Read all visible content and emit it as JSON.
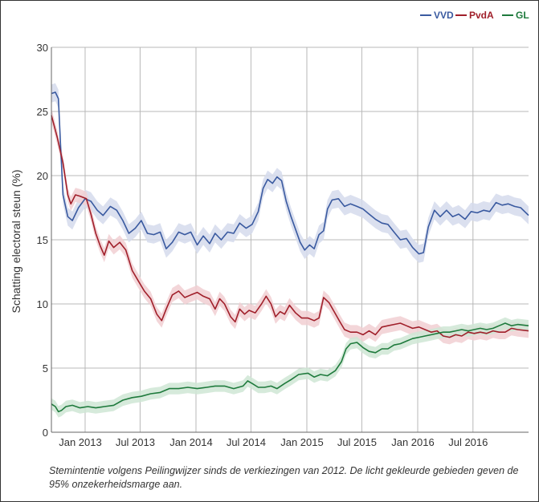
{
  "chart_data": {
    "type": "line",
    "title": "",
    "xlabel": "",
    "ylabel": "Schatting electoral steun (%)",
    "ylim": [
      0,
      30
    ],
    "xlim": [
      "2012-09-12",
      "2016-12-31"
    ],
    "grid": true,
    "legend_position": "top-right",
    "y_ticks": [
      "0",
      "5",
      "10",
      "15",
      "20",
      "25",
      "30"
    ],
    "x_ticks": [
      {
        "date": "2013-01-01",
        "label": "Jan 2013"
      },
      {
        "date": "2013-07-01",
        "label": "Jul 2013"
      },
      {
        "date": "2014-01-01",
        "label": "Jan 2014"
      },
      {
        "date": "2014-07-01",
        "label": "Jul 2014"
      },
      {
        "date": "2015-01-01",
        "label": "Jan 2015"
      },
      {
        "date": "2015-07-01",
        "label": "Jul 2015"
      },
      {
        "date": "2016-01-01",
        "label": "Jan 2016"
      },
      {
        "date": "2016-07-01",
        "label": "Jul 2016"
      }
    ],
    "band_note": "95% onzekerheidsmarge",
    "series": [
      {
        "name": "VVD",
        "color": "#3a5aa0",
        "band_color": "#d5daec",
        "band_halfwidth": 0.7,
        "points": [
          [
            "2012-09-12",
            26.4
          ],
          [
            "2012-09-25",
            26.5
          ],
          [
            "2012-10-05",
            26.0
          ],
          [
            "2012-10-12",
            22.5
          ],
          [
            "2012-10-20",
            18.5
          ],
          [
            "2012-11-05",
            16.8
          ],
          [
            "2012-11-20",
            16.5
          ],
          [
            "2012-12-10",
            17.5
          ],
          [
            "2013-01-01",
            18.2
          ],
          [
            "2013-01-20",
            18.0
          ],
          [
            "2013-02-10",
            17.3
          ],
          [
            "2013-03-01",
            16.9
          ],
          [
            "2013-03-25",
            17.6
          ],
          [
            "2013-04-15",
            17.3
          ],
          [
            "2013-05-05",
            16.5
          ],
          [
            "2013-05-25",
            15.5
          ],
          [
            "2013-06-15",
            15.9
          ],
          [
            "2013-07-05",
            16.5
          ],
          [
            "2013-07-25",
            15.5
          ],
          [
            "2013-08-15",
            15.4
          ],
          [
            "2013-09-05",
            15.6
          ],
          [
            "2013-09-25",
            14.3
          ],
          [
            "2013-10-15",
            14.8
          ],
          [
            "2013-11-05",
            15.6
          ],
          [
            "2013-11-25",
            15.4
          ],
          [
            "2013-12-15",
            15.6
          ],
          [
            "2014-01-05",
            14.6
          ],
          [
            "2014-01-25",
            15.3
          ],
          [
            "2014-02-15",
            14.7
          ],
          [
            "2014-03-05",
            15.5
          ],
          [
            "2014-03-25",
            15.0
          ],
          [
            "2014-04-15",
            15.6
          ],
          [
            "2014-05-05",
            15.5
          ],
          [
            "2014-05-25",
            16.3
          ],
          [
            "2014-06-15",
            15.9
          ],
          [
            "2014-07-05",
            16.2
          ],
          [
            "2014-07-25",
            17.2
          ],
          [
            "2014-08-10",
            19.0
          ],
          [
            "2014-08-25",
            19.7
          ],
          [
            "2014-09-10",
            19.4
          ],
          [
            "2014-09-25",
            19.9
          ],
          [
            "2014-10-10",
            19.6
          ],
          [
            "2014-10-25",
            18.0
          ],
          [
            "2014-11-10",
            16.8
          ],
          [
            "2014-11-25",
            15.8
          ],
          [
            "2014-12-10",
            14.8
          ],
          [
            "2014-12-25",
            14.2
          ],
          [
            "2015-01-10",
            14.6
          ],
          [
            "2015-01-25",
            14.3
          ],
          [
            "2015-02-10",
            15.4
          ],
          [
            "2015-02-25",
            15.7
          ],
          [
            "2015-03-10",
            17.4
          ],
          [
            "2015-03-25",
            18.1
          ],
          [
            "2015-04-15",
            18.2
          ],
          [
            "2015-05-05",
            17.6
          ],
          [
            "2015-05-25",
            17.8
          ],
          [
            "2015-06-15",
            17.6
          ],
          [
            "2015-07-05",
            17.4
          ],
          [
            "2015-07-25",
            17.0
          ],
          [
            "2015-08-15",
            16.6
          ],
          [
            "2015-09-05",
            16.3
          ],
          [
            "2015-09-25",
            16.2
          ],
          [
            "2015-10-15",
            15.6
          ],
          [
            "2015-11-05",
            15.0
          ],
          [
            "2015-11-25",
            15.1
          ],
          [
            "2015-12-15",
            14.4
          ],
          [
            "2016-01-05",
            13.9
          ],
          [
            "2016-01-20",
            14.0
          ],
          [
            "2016-02-05",
            16.0
          ],
          [
            "2016-02-25",
            17.3
          ],
          [
            "2016-03-15",
            16.8
          ],
          [
            "2016-04-05",
            17.3
          ],
          [
            "2016-04-25",
            16.8
          ],
          [
            "2016-05-15",
            17.0
          ],
          [
            "2016-06-05",
            16.6
          ],
          [
            "2016-06-25",
            17.2
          ],
          [
            "2016-07-15",
            17.1
          ],
          [
            "2016-08-05",
            17.3
          ],
          [
            "2016-08-25",
            17.2
          ],
          [
            "2016-09-15",
            17.9
          ],
          [
            "2016-10-05",
            17.7
          ],
          [
            "2016-10-25",
            17.8
          ],
          [
            "2016-11-15",
            17.6
          ],
          [
            "2016-12-05",
            17.5
          ],
          [
            "2016-12-31",
            16.9
          ]
        ]
      },
      {
        "name": "PvdA",
        "color": "#a01f2a",
        "band_color": "#f1cfd2",
        "band_halfwidth": 0.55,
        "points": [
          [
            "2012-09-12",
            24.7
          ],
          [
            "2012-10-01",
            23.0
          ],
          [
            "2012-10-20",
            21.0
          ],
          [
            "2012-11-05",
            18.5
          ],
          [
            "2012-11-15",
            17.8
          ],
          [
            "2012-11-30",
            18.5
          ],
          [
            "2012-12-15",
            18.4
          ],
          [
            "2013-01-05",
            18.2
          ],
          [
            "2013-01-20",
            17.0
          ],
          [
            "2013-02-05",
            15.5
          ],
          [
            "2013-02-20",
            14.5
          ],
          [
            "2013-03-05",
            13.8
          ],
          [
            "2013-03-20",
            14.9
          ],
          [
            "2013-04-05",
            14.4
          ],
          [
            "2013-04-25",
            14.8
          ],
          [
            "2013-05-15",
            14.2
          ],
          [
            "2013-06-05",
            12.6
          ],
          [
            "2013-06-25",
            11.8
          ],
          [
            "2013-07-15",
            11.0
          ],
          [
            "2013-08-05",
            10.4
          ],
          [
            "2013-08-25",
            9.2
          ],
          [
            "2013-09-10",
            8.7
          ],
          [
            "2013-09-25",
            9.6
          ],
          [
            "2013-10-15",
            10.7
          ],
          [
            "2013-11-05",
            11.0
          ],
          [
            "2013-11-25",
            10.5
          ],
          [
            "2013-12-15",
            10.7
          ],
          [
            "2014-01-05",
            10.9
          ],
          [
            "2014-01-25",
            10.6
          ],
          [
            "2014-02-15",
            10.4
          ],
          [
            "2014-03-05",
            9.6
          ],
          [
            "2014-03-20",
            10.4
          ],
          [
            "2014-04-05",
            10.0
          ],
          [
            "2014-04-25",
            9.0
          ],
          [
            "2014-05-10",
            8.6
          ],
          [
            "2014-05-25",
            9.6
          ],
          [
            "2014-06-10",
            9.2
          ],
          [
            "2014-06-25",
            9.5
          ],
          [
            "2014-07-15",
            9.3
          ],
          [
            "2014-08-05",
            10.0
          ],
          [
            "2014-08-20",
            10.6
          ],
          [
            "2014-09-05",
            10.0
          ],
          [
            "2014-09-20",
            9.0
          ],
          [
            "2014-10-05",
            9.4
          ],
          [
            "2014-10-20",
            9.2
          ],
          [
            "2014-11-05",
            9.9
          ],
          [
            "2014-11-25",
            9.3
          ],
          [
            "2014-12-15",
            8.9
          ],
          [
            "2015-01-05",
            8.9
          ],
          [
            "2015-01-25",
            8.7
          ],
          [
            "2015-02-10",
            8.9
          ],
          [
            "2015-02-25",
            10.5
          ],
          [
            "2015-03-15",
            10.1
          ],
          [
            "2015-04-01",
            9.4
          ],
          [
            "2015-04-20",
            8.6
          ],
          [
            "2015-05-05",
            8.0
          ],
          [
            "2015-05-25",
            7.8
          ],
          [
            "2015-06-15",
            7.8
          ],
          [
            "2015-07-05",
            7.6
          ],
          [
            "2015-07-25",
            7.9
          ],
          [
            "2015-08-15",
            7.6
          ],
          [
            "2015-09-05",
            8.2
          ],
          [
            "2015-09-25",
            8.3
          ],
          [
            "2015-10-15",
            8.4
          ],
          [
            "2015-11-05",
            8.5
          ],
          [
            "2015-11-25",
            8.3
          ],
          [
            "2015-12-15",
            8.1
          ],
          [
            "2016-01-05",
            8.2
          ],
          [
            "2016-01-25",
            8.0
          ],
          [
            "2016-02-15",
            7.8
          ],
          [
            "2016-03-05",
            7.9
          ],
          [
            "2016-03-25",
            7.5
          ],
          [
            "2016-04-15",
            7.4
          ],
          [
            "2016-05-05",
            7.6
          ],
          [
            "2016-05-25",
            7.5
          ],
          [
            "2016-06-15",
            7.8
          ],
          [
            "2016-07-05",
            7.7
          ],
          [
            "2016-07-25",
            7.8
          ],
          [
            "2016-08-15",
            7.7
          ],
          [
            "2016-09-05",
            7.9
          ],
          [
            "2016-09-25",
            7.8
          ],
          [
            "2016-10-15",
            7.8
          ],
          [
            "2016-11-05",
            8.1
          ],
          [
            "2016-11-25",
            8.0
          ],
          [
            "2016-12-31",
            7.9
          ]
        ]
      },
      {
        "name": "GL",
        "color": "#1e7a3c",
        "band_color": "#cfe6d5",
        "band_halfwidth": 0.45,
        "points": [
          [
            "2012-09-12",
            2.2
          ],
          [
            "2012-09-25",
            2.0
          ],
          [
            "2012-10-05",
            1.6
          ],
          [
            "2012-10-15",
            1.7
          ],
          [
            "2012-10-30",
            2.0
          ],
          [
            "2012-11-20",
            2.1
          ],
          [
            "2012-12-15",
            1.9
          ],
          [
            "2013-01-10",
            2.0
          ],
          [
            "2013-02-05",
            1.9
          ],
          [
            "2013-03-05",
            2.0
          ],
          [
            "2013-04-05",
            2.1
          ],
          [
            "2013-05-05",
            2.5
          ],
          [
            "2013-06-05",
            2.7
          ],
          [
            "2013-07-05",
            2.8
          ],
          [
            "2013-08-05",
            3.0
          ],
          [
            "2013-09-05",
            3.1
          ],
          [
            "2013-10-05",
            3.4
          ],
          [
            "2013-11-05",
            3.4
          ],
          [
            "2013-12-05",
            3.5
          ],
          [
            "2014-01-05",
            3.4
          ],
          [
            "2014-02-05",
            3.5
          ],
          [
            "2014-03-05",
            3.6
          ],
          [
            "2014-04-05",
            3.6
          ],
          [
            "2014-05-05",
            3.4
          ],
          [
            "2014-06-05",
            3.6
          ],
          [
            "2014-06-20",
            4.0
          ],
          [
            "2014-07-05",
            3.8
          ],
          [
            "2014-07-25",
            3.5
          ],
          [
            "2014-08-15",
            3.5
          ],
          [
            "2014-09-05",
            3.6
          ],
          [
            "2014-09-25",
            3.4
          ],
          [
            "2014-10-20",
            3.8
          ],
          [
            "2014-11-10",
            4.1
          ],
          [
            "2014-12-05",
            4.5
          ],
          [
            "2015-01-05",
            4.6
          ],
          [
            "2015-01-25",
            4.3
          ],
          [
            "2015-02-15",
            4.5
          ],
          [
            "2015-03-10",
            4.4
          ],
          [
            "2015-04-05",
            4.8
          ],
          [
            "2015-04-25",
            5.5
          ],
          [
            "2015-05-10",
            6.5
          ],
          [
            "2015-05-25",
            6.9
          ],
          [
            "2015-06-15",
            7.0
          ],
          [
            "2015-07-05",
            6.6
          ],
          [
            "2015-07-25",
            6.3
          ],
          [
            "2015-08-15",
            6.2
          ],
          [
            "2015-09-05",
            6.5
          ],
          [
            "2015-09-25",
            6.5
          ],
          [
            "2015-10-15",
            6.8
          ],
          [
            "2015-11-05",
            6.9
          ],
          [
            "2015-11-25",
            7.1
          ],
          [
            "2015-12-15",
            7.3
          ],
          [
            "2016-01-05",
            7.4
          ],
          [
            "2016-01-25",
            7.5
          ],
          [
            "2016-02-15",
            7.6
          ],
          [
            "2016-03-05",
            7.7
          ],
          [
            "2016-03-25",
            7.8
          ],
          [
            "2016-04-15",
            7.8
          ],
          [
            "2016-05-05",
            7.9
          ],
          [
            "2016-05-25",
            8.0
          ],
          [
            "2016-06-15",
            7.9
          ],
          [
            "2016-07-05",
            8.0
          ],
          [
            "2016-07-25",
            8.1
          ],
          [
            "2016-08-15",
            8.0
          ],
          [
            "2016-09-05",
            8.1
          ],
          [
            "2016-09-25",
            8.3
          ],
          [
            "2016-10-15",
            8.5
          ],
          [
            "2016-11-05",
            8.3
          ],
          [
            "2016-11-25",
            8.4
          ],
          [
            "2016-12-31",
            8.3
          ]
        ]
      }
    ]
  },
  "caption": "Stemintentie volgens Peilingwijzer sinds de verkiezingen van 2012. De licht gekleurde gebieden geven de 95% onzekerheidsmarge aan.",
  "colors": {
    "grid": "#b8b8b8",
    "axis": "#666666",
    "text": "#333333"
  }
}
